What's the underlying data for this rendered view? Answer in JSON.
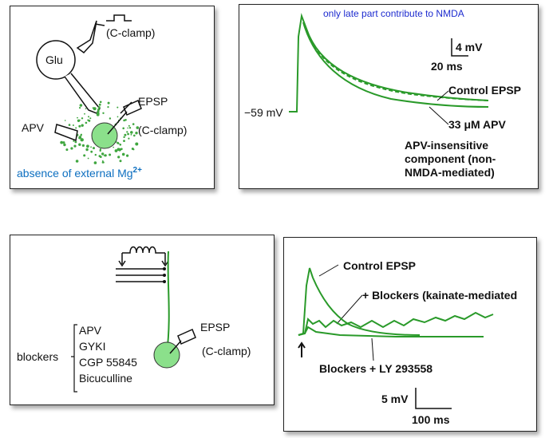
{
  "panel_a": {
    "glu": "Glu",
    "c_clamp_top": "(C-clamp)",
    "epsp": "EPSP",
    "apv": "APV",
    "c_clamp_right": "(C-clamp)",
    "mg_text": "absence of external Mg",
    "mg_sup": "2+"
  },
  "panel_b": {
    "note": "only late part contribute to NMDA",
    "scale_v": "4 mV",
    "scale_t": "20 ms",
    "control_label": "Control EPSP",
    "resting": "−59 mV",
    "apv_label": "33 μM APV",
    "insensitive_1": "APV-insensitive",
    "insensitive_2": "component (non-",
    "insensitive_3": "NMDA-mediated)"
  },
  "panel_c": {
    "epsp": "EPSP",
    "c_clamp": "(C-clamp)",
    "blockers_word": "blockers",
    "blockers_list": [
      "APV",
      "GYKI",
      "CGP 55845",
      "Bicuculline"
    ]
  },
  "panel_d": {
    "control_label": "Control EPSP",
    "blockers_label": "+ Blockers (kainate-mediated",
    "ly_label": "Blockers + LY 293558",
    "scale_v": "5 mV",
    "scale_t": "100 ms"
  },
  "colors": {
    "trace": "#2a9a2a",
    "cell_fill": "#8be08b",
    "blue": "#0d6fc0"
  }
}
